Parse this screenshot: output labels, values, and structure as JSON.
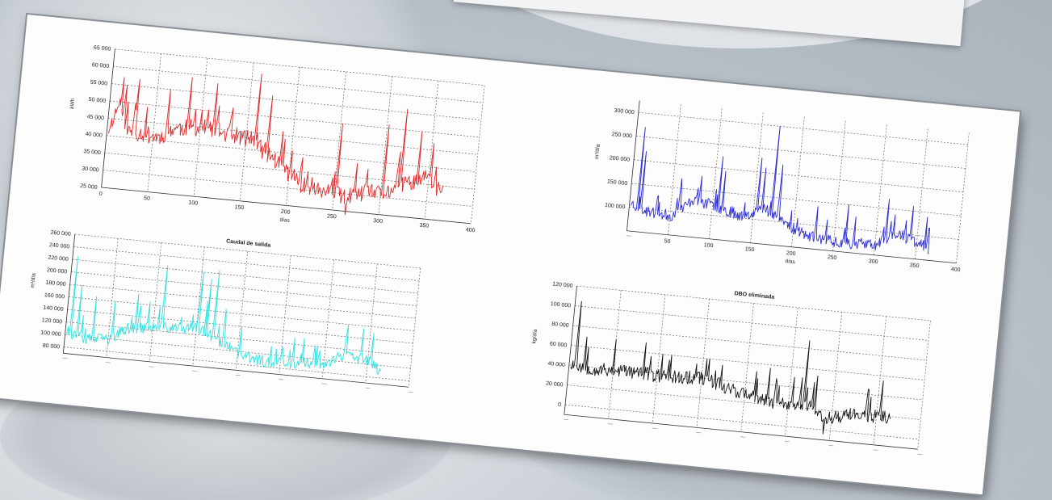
{
  "charts": [
    {
      "id": "chart-red",
      "color": "#e0292b",
      "title": "",
      "xlabel": "días",
      "ylabel": "kWh",
      "xlim": [
        0,
        400
      ],
      "ylim": [
        25000,
        65000
      ],
      "xticks": [
        0,
        50,
        100,
        150,
        200,
        250,
        300,
        350,
        400
      ],
      "yticks": [
        25000,
        30000,
        35000,
        40000,
        45000,
        50000,
        55000,
        60000,
        65000
      ],
      "xtick_labels": [
        "0",
        "50",
        "100",
        "150",
        "200",
        "250",
        "300",
        "350",
        "400"
      ],
      "ytick_labels": [
        "25 000",
        "30 000",
        "35 000",
        "40 000",
        "45 000",
        "50 000",
        "55 000",
        "60 000",
        "65 000"
      ],
      "seed": 11,
      "x_start": 2,
      "n_points": 365,
      "segments": [
        [
          0,
          42000
        ],
        [
          10,
          51000
        ],
        [
          20,
          42000
        ],
        [
          55,
          41000
        ],
        [
          70,
          44000
        ],
        [
          100,
          45000
        ],
        [
          150,
          43000
        ],
        [
          175,
          39000
        ],
        [
          195,
          35000
        ],
        [
          215,
          31000
        ],
        [
          260,
          29000
        ],
        [
          285,
          31000
        ],
        [
          300,
          31000
        ],
        [
          320,
          34000
        ],
        [
          345,
          37000
        ],
        [
          365,
          33000
        ]
      ],
      "noise": 2500,
      "spikes": [
        [
          15,
          55000
        ],
        [
          28,
          57000
        ],
        [
          62,
          55000
        ],
        [
          84,
          59000
        ],
        [
          98,
          50000
        ],
        [
          112,
          58000
        ],
        [
          130,
          49000
        ],
        [
          158,
          62000
        ],
        [
          172,
          56000
        ],
        [
          190,
          44000
        ],
        [
          250,
          50000
        ],
        [
          262,
          24000
        ],
        [
          300,
          51000
        ],
        [
          318,
          56000
        ],
        [
          336,
          50000
        ],
        [
          350,
          47000
        ]
      ]
    },
    {
      "id": "chart-blue",
      "color": "#2b2bcf",
      "title": "",
      "xlabel": "días",
      "ylabel": "m³/día",
      "xlim": [
        0,
        400
      ],
      "ylim": [
        50000,
        325000
      ],
      "xticks": [
        0,
        50,
        100,
        150,
        200,
        250,
        300,
        350,
        400
      ],
      "yticks": [
        100000,
        150000,
        200000,
        250000,
        300000
      ],
      "xtick_labels": [
        "",
        "50",
        "100",
        "150",
        "200",
        "250",
        "300",
        "350",
        "400"
      ],
      "ytick_labels": [
        "100 000",
        "150 000",
        "200 000",
        "250 000",
        "300 000"
      ],
      "seed": 23,
      "x_start": 2,
      "n_points": 365,
      "segments": [
        [
          0,
          110000
        ],
        [
          15,
          95000
        ],
        [
          50,
          90000
        ],
        [
          75,
          130000
        ],
        [
          100,
          120000
        ],
        [
          135,
          105000
        ],
        [
          160,
          125000
        ],
        [
          175,
          115000
        ],
        [
          195,
          90000
        ],
        [
          220,
          75000
        ],
        [
          260,
          70000
        ],
        [
          300,
          72000
        ],
        [
          320,
          100000
        ],
        [
          350,
          85000
        ],
        [
          365,
          70000
        ]
      ],
      "noise": 12000,
      "spikes": [
        [
          8,
          270000
        ],
        [
          12,
          220000
        ],
        [
          58,
          170000
        ],
        [
          82,
          180000
        ],
        [
          105,
          225000
        ],
        [
          110,
          195000
        ],
        [
          152,
          230000
        ],
        [
          158,
          210000
        ],
        [
          170,
          300000
        ],
        [
          178,
          220000
        ],
        [
          225,
          140000
        ],
        [
          262,
          150000
        ],
        [
          310,
          170000
        ],
        [
          340,
          160000
        ],
        [
          358,
          140000
        ]
      ]
    },
    {
      "id": "chart-cyan",
      "color": "#33e1df",
      "title": "Caudal de salida",
      "xlabel": "",
      "ylabel": "m³/día",
      "xlim": [
        0,
        400
      ],
      "ylim": [
        70000,
        260000
      ],
      "xticks": [
        0,
        50,
        100,
        150,
        200,
        250,
        300,
        350,
        400
      ],
      "yticks": [
        80000,
        100000,
        120000,
        140000,
        160000,
        180000,
        200000,
        220000,
        240000,
        260000
      ],
      "xtick_labels": [
        "",
        "",
        "",
        "",
        "",
        "",
        "",
        "",
        ""
      ],
      "ytick_labels": [
        "80 000",
        "100 000",
        "120 000",
        "140 000",
        "160 000",
        "180 000",
        "200 000",
        "220 000",
        "240 000",
        "260 000"
      ],
      "seed": 37,
      "x_start": 2,
      "n_points": 365,
      "segments": [
        [
          0,
          105000
        ],
        [
          20,
          95000
        ],
        [
          50,
          100000
        ],
        [
          70,
          120000
        ],
        [
          100,
          125000
        ],
        [
          150,
          130000
        ],
        [
          180,
          110000
        ],
        [
          200,
          95000
        ],
        [
          230,
          88000
        ],
        [
          260,
          90000
        ],
        [
          300,
          95000
        ],
        [
          320,
          110000
        ],
        [
          350,
          105000
        ],
        [
          365,
          90000
        ]
      ],
      "noise": 9000,
      "spikes": [
        [
          4,
          225000
        ],
        [
          12,
          180000
        ],
        [
          30,
          165000
        ],
        [
          52,
          160000
        ],
        [
          78,
          175000
        ],
        [
          92,
          165000
        ],
        [
          108,
          225000
        ],
        [
          150,
          220000
        ],
        [
          158,
          175000
        ],
        [
          160,
          210000
        ],
        [
          168,
          225000
        ],
        [
          180,
          165000
        ],
        [
          200,
          140000
        ],
        [
          262,
          130000
        ],
        [
          322,
          160000
        ],
        [
          340,
          155000
        ],
        [
          352,
          150000
        ]
      ]
    },
    {
      "id": "chart-black",
      "color": "#141414",
      "title": "DBO eliminada",
      "xlabel": "",
      "ylabel": "kg/día",
      "xlim": [
        0,
        400
      ],
      "ylim": [
        -10000,
        120000
      ],
      "xticks": [
        0,
        50,
        100,
        150,
        200,
        250,
        300,
        350,
        400
      ],
      "yticks": [
        0,
        20000,
        40000,
        60000,
        80000,
        100000,
        120000
      ],
      "xtick_labels": [
        "",
        "",
        "",
        "",
        "",
        "",
        "",
        "",
        ""
      ],
      "ytick_labels": [
        "0",
        "20 000",
        "40 000",
        "60 000",
        "80 000",
        "100 000",
        "120 000"
      ],
      "seed": 53,
      "x_start": 2,
      "n_points": 365,
      "segments": [
        [
          0,
          42000
        ],
        [
          30,
          38000
        ],
        [
          60,
          40000
        ],
        [
          100,
          38000
        ],
        [
          150,
          40000
        ],
        [
          180,
          33000
        ],
        [
          210,
          25000
        ],
        [
          250,
          22000
        ],
        [
          275,
          25000
        ],
        [
          285,
          12000
        ],
        [
          300,
          14000
        ],
        [
          320,
          18000
        ],
        [
          365,
          20000
        ]
      ],
      "noise": 7000,
      "spikes": [
        [
          5,
          105000
        ],
        [
          15,
          70000
        ],
        [
          48,
          70000
        ],
        [
          82,
          70000
        ],
        [
          102,
          60000
        ],
        [
          155,
          60000
        ],
        [
          170,
          55000
        ],
        [
          252,
          50000
        ],
        [
          265,
          88000
        ],
        [
          290,
          -4000
        ],
        [
          352,
          55000
        ]
      ]
    }
  ]
}
